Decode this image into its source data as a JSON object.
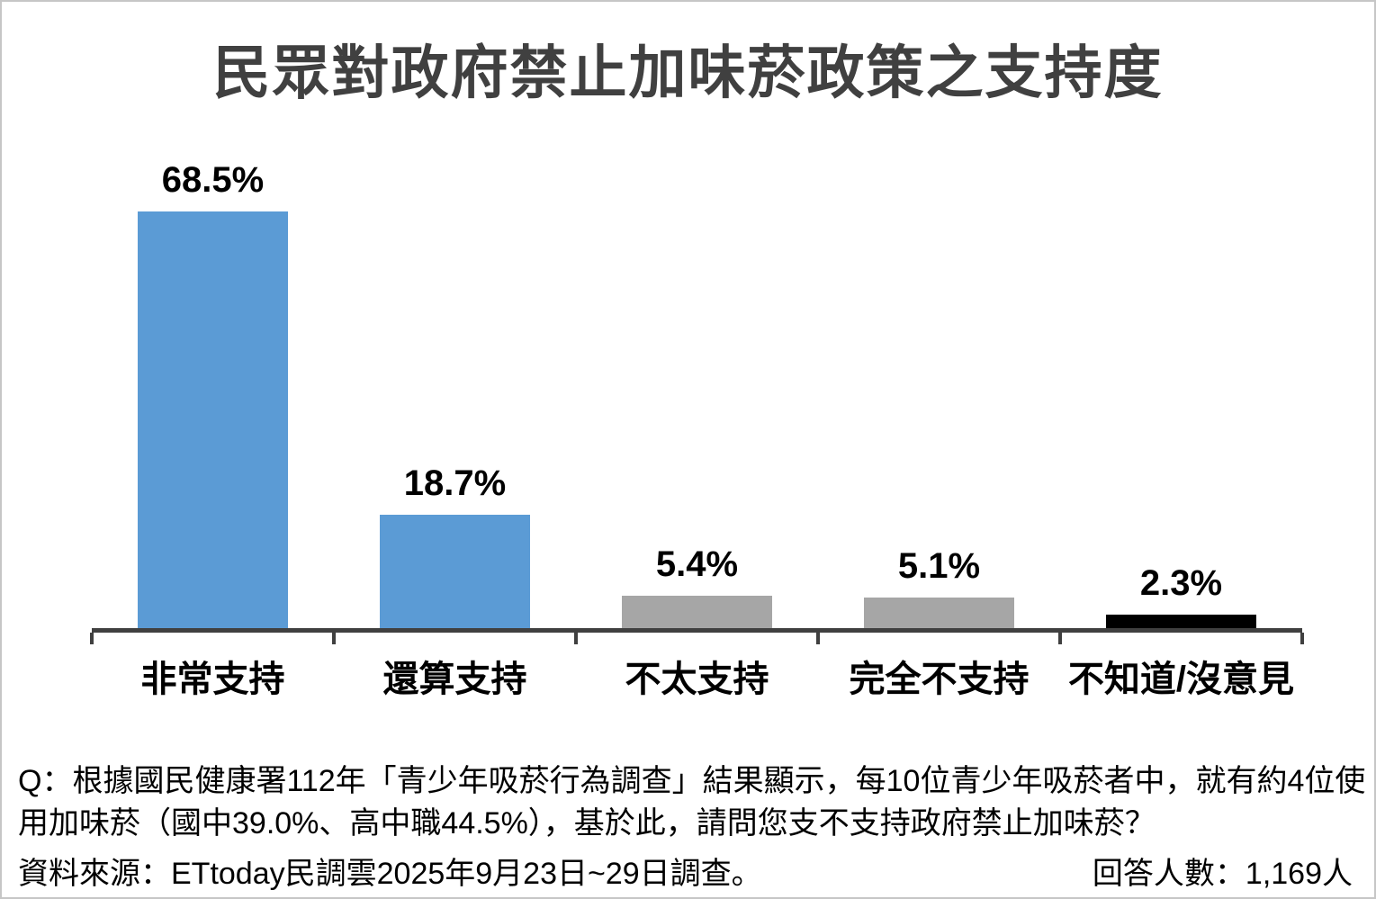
{
  "page": {
    "title": "民眾對政府禁止加味菸政策之支持度"
  },
  "chart_data": {
    "type": "bar",
    "title": "民眾對政府禁止加味菸政策之支持度",
    "categories": [
      "非常支持",
      "還算支持",
      "不太支持",
      "完全不支持",
      "不知道/沒意見"
    ],
    "values": [
      68.5,
      18.7,
      5.4,
      5.1,
      2.3
    ],
    "value_labels": [
      "68.5%",
      "18.7%",
      "5.4%",
      "5.1%",
      "2.3%"
    ],
    "bar_colors": [
      "#5B9BD5",
      "#5B9BD5",
      "#A6A6A6",
      "#A6A6A6",
      "#000000"
    ],
    "xlabel": "",
    "ylabel": "",
    "ylim": [
      0,
      78
    ],
    "grid": false,
    "legend": false,
    "data_labels_position": "above-bars",
    "axis_color": "#404040",
    "title_color": "#404040"
  },
  "footnote": {
    "question_line1": "Q：根據國民健康署112年「青少年吸菸行為調查」結果顯示，每10位青少年吸菸者中，就有約4位使",
    "question_line2": "用加味菸（國中39.0%、高中職44.5%），基於此，請問您支不支持政府禁止加味菸？",
    "source": "資料來源：ETtoday民調雲2025年9月23日~29日調查。",
    "respondents": "回答人數：1,169人"
  }
}
